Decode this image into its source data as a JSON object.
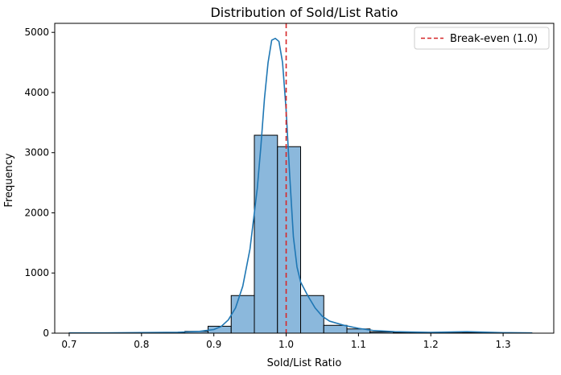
{
  "chart_data": {
    "type": "bar",
    "title": "Distribution of Sold/List Ratio",
    "xlabel": "Sold/List Ratio",
    "ylabel": "Frequency",
    "xlim": [
      0.68,
      1.37
    ],
    "ylim": [
      0,
      5150
    ],
    "x_ticks": [
      {
        "value": 0.7,
        "label": "0.7"
      },
      {
        "value": 0.8,
        "label": "0.8"
      },
      {
        "value": 0.9,
        "label": "0.9"
      },
      {
        "value": 1.0,
        "label": "1.0"
      },
      {
        "value": 1.1,
        "label": "1.1"
      },
      {
        "value": 1.2,
        "label": "1.2"
      },
      {
        "value": 1.3,
        "label": "1.3"
      }
    ],
    "y_ticks": [
      {
        "value": 0,
        "label": "0"
      },
      {
        "value": 1000,
        "label": "1000"
      },
      {
        "value": 2000,
        "label": "2000"
      },
      {
        "value": 3000,
        "label": "3000"
      },
      {
        "value": 4000,
        "label": "4000"
      },
      {
        "value": 5000,
        "label": "5000"
      }
    ],
    "grid": false,
    "legend_position": "top-right",
    "bar_color": "#8bb8dc",
    "bar_edge_color": "#000000",
    "kde_color": "#1f77b4",
    "bins": [
      {
        "x0": 0.7,
        "x1": 0.732,
        "count": 5
      },
      {
        "x0": 0.732,
        "x1": 0.764,
        "count": 3
      },
      {
        "x0": 0.764,
        "x1": 0.796,
        "count": 6
      },
      {
        "x0": 0.796,
        "x1": 0.828,
        "count": 8
      },
      {
        "x0": 0.828,
        "x1": 0.86,
        "count": 12
      },
      {
        "x0": 0.86,
        "x1": 0.892,
        "count": 30
      },
      {
        "x0": 0.892,
        "x1": 0.924,
        "count": 115
      },
      {
        "x0": 0.924,
        "x1": 0.956,
        "count": 625
      },
      {
        "x0": 0.956,
        "x1": 0.988,
        "count": 3290
      },
      {
        "x0": 0.988,
        "x1": 1.02,
        "count": 3100
      },
      {
        "x0": 1.02,
        "x1": 1.052,
        "count": 625
      },
      {
        "x0": 1.052,
        "x1": 1.084,
        "count": 130
      },
      {
        "x0": 1.084,
        "x1": 1.116,
        "count": 70
      },
      {
        "x0": 1.116,
        "x1": 1.148,
        "count": 20
      },
      {
        "x0": 1.148,
        "x1": 1.18,
        "count": 12
      },
      {
        "x0": 1.18,
        "x1": 1.212,
        "count": 8
      },
      {
        "x0": 1.212,
        "x1": 1.244,
        "count": 6
      },
      {
        "x0": 1.244,
        "x1": 1.276,
        "count": 8
      },
      {
        "x0": 1.276,
        "x1": 1.308,
        "count": 4
      },
      {
        "x0": 1.308,
        "x1": 1.34,
        "count": 3
      }
    ],
    "kde": {
      "x": [
        0.7,
        0.75,
        0.8,
        0.85,
        0.88,
        0.9,
        0.91,
        0.92,
        0.93,
        0.94,
        0.95,
        0.96,
        0.965,
        0.97,
        0.975,
        0.98,
        0.985,
        0.99,
        0.995,
        1.0,
        1.005,
        1.01,
        1.015,
        1.02,
        1.03,
        1.04,
        1.05,
        1.06,
        1.08,
        1.1,
        1.12,
        1.15,
        1.2,
        1.25,
        1.3,
        1.34
      ],
      "y": [
        5,
        5,
        10,
        15,
        30,
        60,
        110,
        220,
        420,
        780,
        1400,
        2400,
        3100,
        3900,
        4500,
        4870,
        4900,
        4850,
        4500,
        3700,
        2600,
        1600,
        1100,
        850,
        620,
        420,
        280,
        200,
        130,
        80,
        45,
        25,
        12,
        25,
        8,
        5
      ]
    },
    "reference_line": {
      "x": 1.0,
      "color": "#d62728",
      "label": "Break-even (1.0)"
    }
  }
}
